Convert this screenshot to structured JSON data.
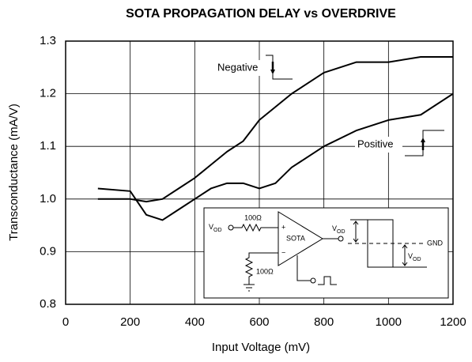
{
  "chart_data": {
    "type": "line",
    "title": "SOTA PROPAGATION DELAY vs OVERDRIVE",
    "x_label": "Input Voltage (mV)",
    "y_label": "Transconductance (mA/V)",
    "x": [
      100,
      200,
      250,
      300,
      350,
      400,
      450,
      500,
      550,
      600,
      650,
      700,
      800,
      900,
      1000,
      1100,
      1200
    ],
    "series": [
      {
        "name": "Negative",
        "color": "#000000",
        "values": [
          1.0,
          1.0,
          0.995,
          1.0,
          1.02,
          1.04,
          1.065,
          1.09,
          1.11,
          1.15,
          1.175,
          1.2,
          1.24,
          1.26,
          1.26,
          1.27,
          1.27
        ]
      },
      {
        "name": "Positive",
        "color": "#000000",
        "values": [
          1.02,
          1.015,
          0.97,
          0.96,
          0.98,
          1.0,
          1.02,
          1.03,
          1.03,
          1.02,
          1.03,
          1.06,
          1.1,
          1.13,
          1.15,
          1.16,
          1.2
        ]
      }
    ],
    "xlim": [
      0,
      1200
    ],
    "xticks": [
      0,
      200,
      400,
      600,
      800,
      1000,
      1200
    ],
    "ylim": [
      0.8,
      1.3
    ],
    "yticks": [
      0.8,
      0.9,
      {
        "value": 1.0,
        "label": "1.0"
      },
      1.1,
      1.2,
      1.3
    ],
    "grid": true
  },
  "inset": {
    "input": {
      "main": "V",
      "sub": "OD"
    },
    "r1": "100Ω",
    "amp": "SOTA",
    "plus": "+",
    "minus": "−",
    "r2": "100Ω",
    "output": {
      "main": "V",
      "sub": "OD"
    },
    "gnd": "GND",
    "swing": {
      "main": "V",
      "sub": "OD"
    }
  }
}
